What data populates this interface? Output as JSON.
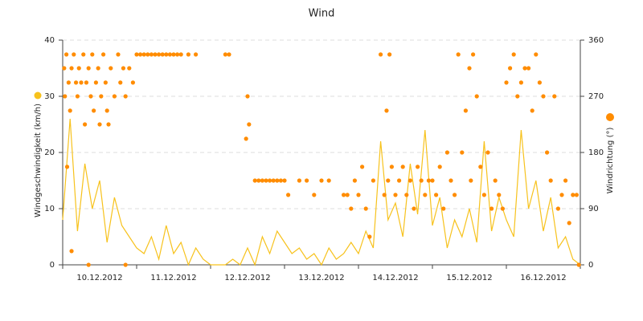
{
  "chart_data": {
    "type": "line",
    "title": "Wind",
    "xlim": [
      0,
      7
    ],
    "ylim": [
      0,
      40
    ],
    "yticks": [
      0,
      10,
      20,
      30,
      40
    ],
    "y2lim": [
      0,
      360
    ],
    "y2ticks": [
      0,
      90,
      180,
      270,
      360
    ],
    "grid": true,
    "categories": [
      "10.12.2012",
      "11.12.2012",
      "12.12.2012",
      "13.12.2012",
      "14.12.2012",
      "15.12.2012",
      "16.12.2012"
    ],
    "series": [
      {
        "name": "Windgeschwindigkeit (km/h)",
        "color": "#f7c21c",
        "type": "line",
        "x": [
          0,
          0.1,
          0.2,
          0.3,
          0.4,
          0.5,
          0.6,
          0.7,
          0.8,
          0.9,
          1,
          1.1,
          1.2,
          1.3,
          1.4,
          1.5,
          1.6,
          1.7,
          1.8,
          1.9,
          2,
          2.1,
          2.2,
          2.3,
          2.4,
          2.5,
          2.6,
          2.7,
          2.8,
          2.9,
          3,
          3.1,
          3.2,
          3.3,
          3.4,
          3.5,
          3.6,
          3.7,
          3.8,
          3.9,
          4,
          4.1,
          4.2,
          4.3,
          4.4,
          4.5,
          4.6,
          4.7,
          4.8,
          4.9,
          5,
          5.1,
          5.2,
          5.3,
          5.4,
          5.5,
          5.6,
          5.7,
          5.8,
          5.9,
          6,
          6.1,
          6.2,
          6.3,
          6.4,
          6.5,
          6.6,
          6.7,
          6.8,
          6.9,
          7
        ],
        "values": [
          8,
          26,
          6,
          18,
          10,
          15,
          4,
          12,
          7,
          5,
          3,
          2,
          5,
          1,
          7,
          2,
          4,
          0,
          3,
          1,
          0,
          0,
          0,
          1,
          0,
          3,
          0,
          5,
          2,
          6,
          4,
          2,
          3,
          1,
          2,
          0,
          3,
          1,
          2,
          4,
          2,
          6,
          3,
          22,
          8,
          11,
          5,
          18,
          9,
          24,
          7,
          12,
          3,
          8,
          5,
          10,
          4,
          22,
          6,
          12,
          8,
          5,
          24,
          10,
          15,
          6,
          12,
          3,
          5,
          1,
          0
        ]
      },
      {
        "name": "Windrichtung (°)",
        "color": "#ff8c00",
        "type": "scatter",
        "axis": "y2",
        "x": [
          0.02,
          0.03,
          0.05,
          0.08,
          0.1,
          0.12,
          0.15,
          0.18,
          0.2,
          0.22,
          0.25,
          0.28,
          0.3,
          0.32,
          0.35,
          0.38,
          0.4,
          0.42,
          0.45,
          0.48,
          0.5,
          0.52,
          0.55,
          0.58,
          0.6,
          0.62,
          0.65,
          0.7,
          0.75,
          0.78,
          0.82,
          0.85,
          0.9,
          0.95,
          0.06,
          0.12,
          0.35,
          0.85,
          1,
          1.05,
          1.1,
          1.15,
          1.2,
          1.25,
          1.3,
          1.35,
          1.4,
          1.45,
          1.5,
          1.55,
          1.6,
          1.7,
          1.8,
          2.2,
          2.25,
          2.5,
          2.48,
          2.52,
          2.6,
          2.65,
          2.7,
          2.75,
          2.8,
          2.85,
          2.9,
          2.95,
          3,
          3.05,
          3.2,
          3.3,
          3.4,
          3.5,
          3.6,
          3.8,
          3.85,
          3.9,
          3.95,
          4,
          4.05,
          4.1,
          4.15,
          4.2,
          4.3,
          4.35,
          4.4,
          4.45,
          4.5,
          4.55,
          4.6,
          4.65,
          4.7,
          4.75,
          4.8,
          4.85,
          4.9,
          4.95,
          4.38,
          4.42,
          5,
          5.05,
          5.1,
          5.15,
          5.2,
          5.25,
          5.3,
          5.35,
          5.4,
          5.45,
          5.5,
          5.55,
          5.6,
          5.65,
          5.7,
          5.75,
          5.8,
          5.85,
          5.9,
          5.95,
          5.52,
          6,
          6.05,
          6.1,
          6.15,
          6.2,
          6.25,
          6.3,
          6.35,
          6.4,
          6.45,
          6.5,
          6.55,
          6.6,
          6.65,
          6.7,
          6.75,
          6.8,
          6.85,
          6.9,
          6.95,
          6.98
        ],
        "values": [
          315,
          270,
          337,
          292,
          247,
          315,
          337,
          292,
          270,
          315,
          292,
          337,
          225,
          292,
          315,
          270,
          337,
          247,
          292,
          315,
          225,
          270,
          337,
          292,
          247,
          225,
          315,
          270,
          337,
          292,
          315,
          270,
          315,
          292,
          157,
          22,
          0,
          0,
          337,
          337,
          337,
          337,
          337,
          337,
          337,
          337,
          337,
          337,
          337,
          337,
          337,
          337,
          337,
          337,
          337,
          270,
          202,
          225,
          135,
          135,
          135,
          135,
          135,
          135,
          135,
          135,
          135,
          112,
          135,
          135,
          112,
          135,
          135,
          112,
          112,
          90,
          135,
          112,
          157,
          90,
          45,
          135,
          337,
          112,
          135,
          157,
          112,
          135,
          157,
          112,
          135,
          90,
          157,
          135,
          112,
          135,
          247,
          337,
          135,
          112,
          157,
          90,
          180,
          135,
          112,
          337,
          180,
          247,
          315,
          337,
          270,
          157,
          112,
          180,
          90,
          135,
          112,
          90,
          135,
          292,
          315,
          337,
          270,
          292,
          315,
          315,
          247,
          337,
          292,
          270,
          180,
          135,
          270,
          90,
          112,
          135,
          67,
          112,
          112,
          0
        ]
      }
    ]
  }
}
